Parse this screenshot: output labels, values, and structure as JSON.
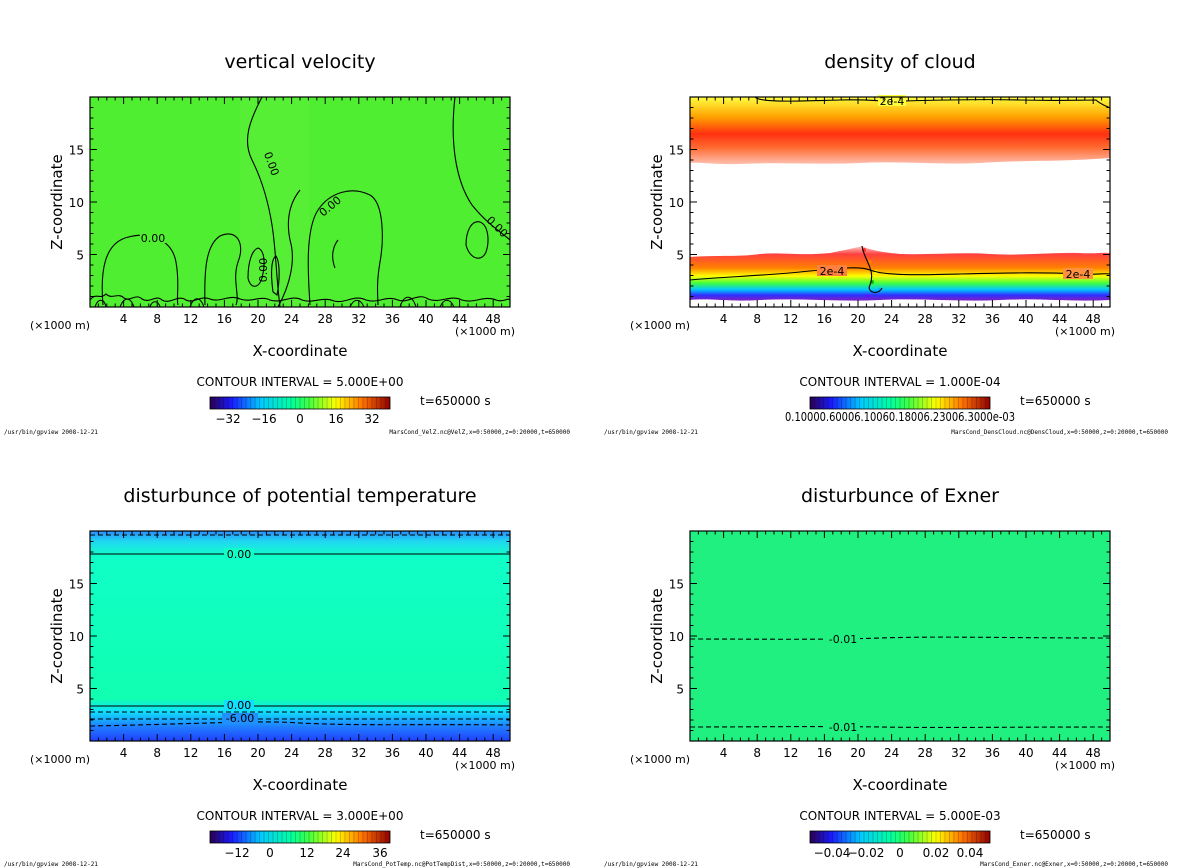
{
  "panels": [
    {
      "title": "vertical velocity",
      "xlabel": "X-coordinate",
      "ylabel": "Z-coordinate",
      "x_unit_left": "(×1000 m)",
      "x_unit_right": "(×1000 m)",
      "contour_interval": "CONTOUR INTERVAL = 5.000E+00",
      "time": "t=650000 s",
      "colorbar_ticks": [
        "−32",
        "−16",
        "0",
        "16",
        "32"
      ],
      "footer_left": "/usr/bin/gpview  2008-12-21",
      "footer_right": "MarsCond_VelZ.nc@VelZ,x=0:50000,z=0:20000,t=650000",
      "contour_labels": [
        "0.00",
        "0.00",
        "0.00",
        "0.00",
        "0.00",
        "0.00"
      ]
    },
    {
      "title": "density of cloud",
      "xlabel": "X-coordinate",
      "ylabel": "Z-coordinate",
      "x_unit_left": "(×1000 m)",
      "x_unit_right": "(×1000 m)",
      "contour_interval": "CONTOUR INTERVAL = 1.000E-04",
      "time": "t=650000 s",
      "colorbar_ticks_text": "0.10000.60006.10060.18006.23006.3000e-03",
      "footer_left": "/usr/bin/gpview  2008-12-21",
      "footer_right": "MarsCond_DensCloud.nc@DensCloud,x=0:50000,z=0:20000,t=650000",
      "contour_labels": [
        "2e-4",
        "2e-4",
        "2e-4"
      ]
    },
    {
      "title": "disturbunce of potential temperature",
      "xlabel": "X-coordinate",
      "ylabel": "Z-coordinate",
      "x_unit_left": "(×1000 m)",
      "x_unit_right": "(×1000 m)",
      "contour_interval": "CONTOUR INTERVAL = 3.000E+00",
      "time": "t=650000 s",
      "colorbar_ticks": [
        "−12",
        "0",
        "12",
        "24",
        "36"
      ],
      "footer_left": "/usr/bin/gpview  2008-12-21",
      "footer_right": "MarsCond_PotTemp.nc@PotTempDist,x=0:50000,z=0:20000,t=650000",
      "contour_labels": [
        "0.00",
        "0.00",
        "-6.00"
      ]
    },
    {
      "title": "disturbunce of Exner",
      "xlabel": "X-coordinate",
      "ylabel": "Z-coordinate",
      "x_unit_left": "(×1000 m)",
      "x_unit_right": "(×1000 m)",
      "contour_interval": "CONTOUR INTERVAL = 5.000E-03",
      "time": "t=650000 s",
      "colorbar_ticks": [
        "−0.04",
        "−0.02",
        "0",
        "0.02",
        "0.04"
      ],
      "footer_left": "/usr/bin/gpview  2008-12-21",
      "footer_right": "MarsCond_Exner.nc@Exner,x=0:50000,z=0:20000,t=650000",
      "contour_labels": [
        "-0.01",
        "-0.01"
      ]
    }
  ],
  "chart_data": [
    {
      "type": "heatmap",
      "title": "vertical velocity",
      "xlabel": "X-coordinate",
      "ylabel": "Z-coordinate",
      "x_ticks": [
        "4",
        "8",
        "12",
        "16",
        "20",
        "24",
        "28",
        "32",
        "36",
        "40",
        "44",
        "48"
      ],
      "y_ticks": [
        "5",
        "10",
        "15"
      ],
      "xlim": [
        0,
        50
      ],
      "ylim": [
        0,
        20
      ],
      "colorbar_ticks": [
        -32,
        -16,
        0,
        16,
        32
      ],
      "contour_interval": 5.0,
      "field": "near zero everywhere (green)",
      "contour_levels_labeled": [
        0.0
      ]
    },
    {
      "type": "heatmap",
      "title": "density of cloud",
      "xlabel": "X-coordinate",
      "ylabel": "Z-coordinate",
      "x_ticks": [
        "4",
        "8",
        "12",
        "16",
        "20",
        "24",
        "28",
        "32",
        "36",
        "40",
        "44",
        "48"
      ],
      "y_ticks": [
        "5",
        "10",
        "15"
      ],
      "xlim": [
        0,
        50
      ],
      "ylim": [
        0,
        20
      ],
      "contour_interval": 0.0001,
      "cloud_layers_z": [
        [
          13.5,
          20
        ],
        [
          0.8,
          5.2
        ]
      ],
      "contour_levels_labeled": [
        0.0002
      ]
    },
    {
      "type": "heatmap",
      "title": "disturbunce of potential temperature",
      "xlabel": "X-coordinate",
      "ylabel": "Z-coordinate",
      "x_ticks": [
        "4",
        "8",
        "12",
        "16",
        "20",
        "24",
        "28",
        "32",
        "36",
        "40",
        "44",
        "48"
      ],
      "y_ticks": [
        "5",
        "10",
        "15"
      ],
      "xlim": [
        0,
        50
      ],
      "ylim": [
        0,
        20
      ],
      "colorbar_ticks": [
        -12,
        0,
        12,
        24,
        36
      ],
      "contour_interval": 3.0,
      "contour_levels_labeled": [
        0.0,
        0.0,
        -6.0
      ],
      "contour_z": [
        17.8,
        3.3,
        2.0
      ]
    },
    {
      "type": "heatmap",
      "title": "disturbunce of Exner",
      "xlabel": "X-coordinate",
      "ylabel": "Z-coordinate",
      "x_ticks": [
        "4",
        "8",
        "12",
        "16",
        "20",
        "24",
        "28",
        "32",
        "36",
        "40",
        "44",
        "48"
      ],
      "y_ticks": [
        "5",
        "10",
        "15"
      ],
      "xlim": [
        0,
        50
      ],
      "ylim": [
        0,
        20
      ],
      "colorbar_ticks": [
        -0.04,
        -0.02,
        0,
        0.02,
        0.04
      ],
      "contour_interval": 0.005,
      "contour_levels_labeled": [
        -0.01,
        -0.01
      ],
      "contour_z": [
        9.5,
        1.2
      ]
    }
  ]
}
